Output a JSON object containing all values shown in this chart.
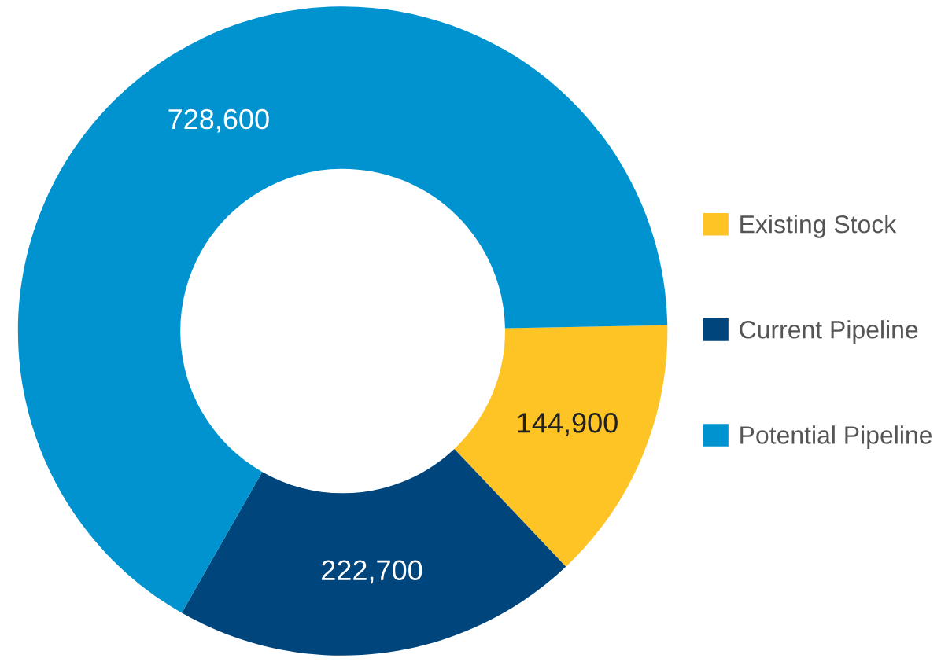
{
  "chart_data": {
    "type": "donut",
    "categories": [
      "Existing Stock",
      "Current Pipeline",
      "Potential Pipeline"
    ],
    "values": [
      144900,
      222700,
      728600
    ],
    "colors": [
      "#fec325",
      "#00457c",
      "#0093d0"
    ],
    "value_labels": [
      "144,900",
      "222,700",
      "728,600"
    ],
    "legend": "right"
  }
}
